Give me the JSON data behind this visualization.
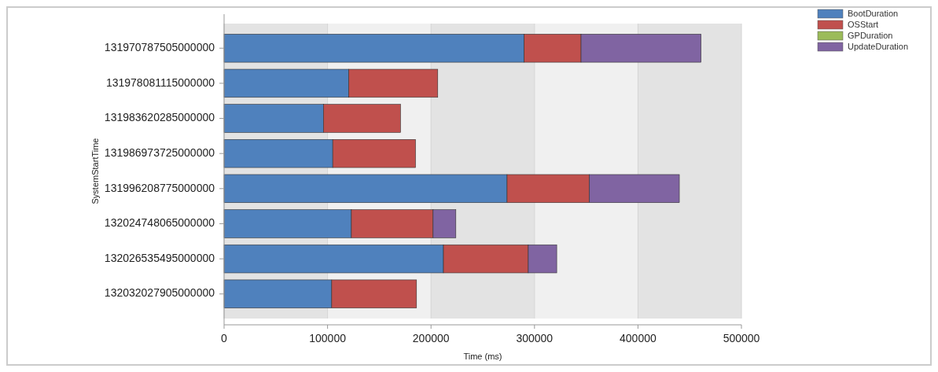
{
  "chart_data": {
    "type": "bar",
    "orientation": "horizontal",
    "stacked": true,
    "xlabel": "Time (ms)",
    "ylabel": "SystemStartTime",
    "categories": [
      "131970787505000000",
      "131978081115000000",
      "131983620285000000",
      "131986973725000000",
      "131996208775000000",
      "132024748065000000",
      "132026535495000000",
      "132032027905000000"
    ],
    "series": [
      {
        "name": "BootDuration",
        "color": "#4f81bd",
        "values": [
          290000,
          120500,
          96000,
          105000,
          273500,
          123000,
          212000,
          104000
        ]
      },
      {
        "name": "OSStart",
        "color": "#c0504d",
        "values": [
          55000,
          86000,
          74500,
          80000,
          79500,
          79000,
          82000,
          82000
        ]
      },
      {
        "name": "GPDuration",
        "color": "#9bbb59",
        "values": [
          0,
          0,
          0,
          0,
          0,
          0,
          0,
          0
        ]
      },
      {
        "name": "UpdateDuration",
        "color": "#8064a2",
        "values": [
          116000,
          0,
          0,
          0,
          87000,
          22000,
          27500,
          0
        ]
      }
    ],
    "xlim": [
      0,
      500000
    ],
    "xticks": [
      0,
      100000,
      200000,
      300000,
      400000,
      500000
    ],
    "grid": "x",
    "legend": "top right"
  }
}
